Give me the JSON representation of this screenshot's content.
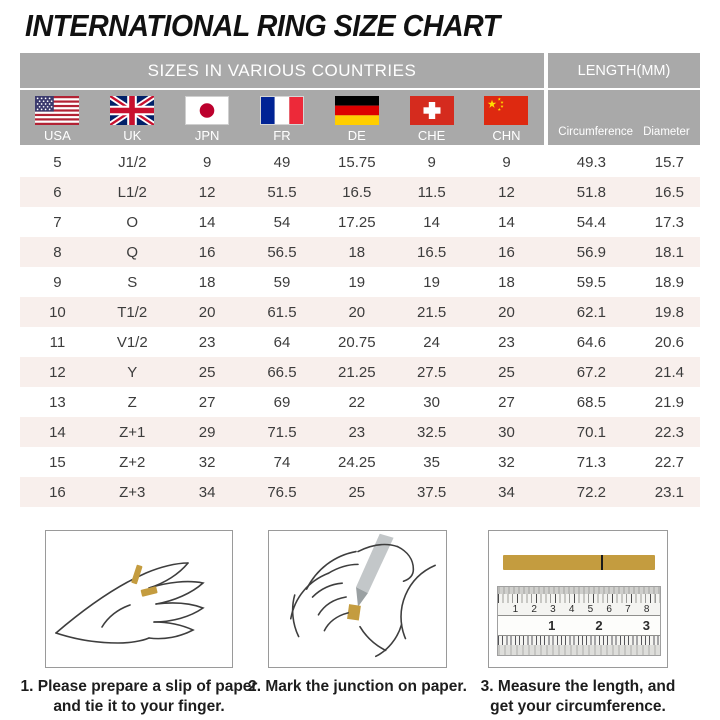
{
  "title": "INTERNATIONAL RING SIZE CHART",
  "table": {
    "header_left": "SIZES IN VARIOUS COUNTRIES",
    "header_right": "LENGTH(MM)",
    "countries": [
      {
        "code": "USA",
        "flag": "usa-flag"
      },
      {
        "code": "UK",
        "flag": "uk-flag"
      },
      {
        "code": "JPN",
        "flag": "japan-flag"
      },
      {
        "code": "FR",
        "flag": "france-flag"
      },
      {
        "code": "DE",
        "flag": "germany-flag"
      },
      {
        "code": "CHE",
        "flag": "switzerland-flag"
      },
      {
        "code": "CHN",
        "flag": "china-flag"
      }
    ],
    "length_columns": [
      "Circumference",
      "Diameter"
    ],
    "rows": [
      [
        "5",
        "J1/2",
        "9",
        "49",
        "15.75",
        "9",
        "9",
        "49.3",
        "15.7"
      ],
      [
        "6",
        "L1/2",
        "12",
        "51.5",
        "16.5",
        "11.5",
        "12",
        "51.8",
        "16.5"
      ],
      [
        "7",
        "O",
        "14",
        "54",
        "17.25",
        "14",
        "14",
        "54.4",
        "17.3"
      ],
      [
        "8",
        "Q",
        "16",
        "56.5",
        "18",
        "16.5",
        "16",
        "56.9",
        "18.1"
      ],
      [
        "9",
        "S",
        "18",
        "59",
        "19",
        "19",
        "18",
        "59.5",
        "18.9"
      ],
      [
        "10",
        "T1/2",
        "20",
        "61.5",
        "20",
        "21.5",
        "20",
        "62.1",
        "19.8"
      ],
      [
        "11",
        "V1/2",
        "23",
        "64",
        "20.75",
        "24",
        "23",
        "64.6",
        "20.6"
      ],
      [
        "12",
        "Y",
        "25",
        "66.5",
        "21.25",
        "27.5",
        "25",
        "67.2",
        "21.4"
      ],
      [
        "13",
        "Z",
        "27",
        "69",
        "22",
        "30",
        "27",
        "68.5",
        "21.9"
      ],
      [
        "14",
        "Z+1",
        "29",
        "71.5",
        "23",
        "32.5",
        "30",
        "70.1",
        "22.3"
      ],
      [
        "15",
        "Z+2",
        "32",
        "74",
        "24.25",
        "35",
        "32",
        "71.3",
        "22.7"
      ],
      [
        "16",
        "Z+3",
        "34",
        "76.5",
        "25",
        "37.5",
        "34",
        "72.2",
        "23.1"
      ]
    ]
  },
  "instructions": [
    {
      "lines": [
        "1. Please prepare a slip of paper",
        "and tie it to your finger."
      ]
    },
    {
      "lines": [
        "2. Mark the junction on paper."
      ]
    },
    {
      "lines": [
        "3. Measure the length, and",
        "get your circumference."
      ]
    }
  ],
  "ruler": {
    "cm_numbers": [
      "1",
      "2",
      "3",
      "4",
      "5",
      "6",
      "7",
      "8"
    ],
    "inch_numbers": [
      "1",
      "2",
      "3"
    ]
  },
  "colors": {
    "band_gray": "#a9a9a9",
    "stripe_pink": "#f8efec",
    "text_dark": "#3c3c3c",
    "title_black": "#111111",
    "paper_gold": "#c49c3f",
    "box_border": "#9a9a9a"
  }
}
